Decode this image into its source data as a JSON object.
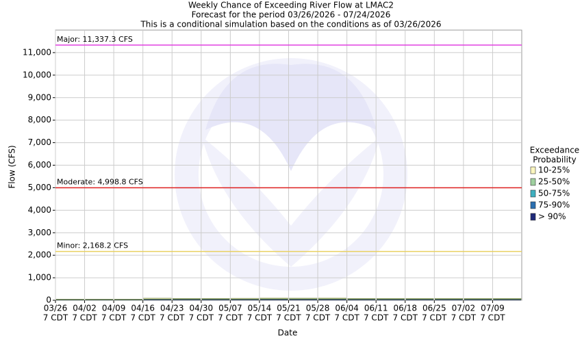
{
  "chart_data": {
    "type": "stacked-bar",
    "title": [
      "Weekly Chance of Exceeding River Flow at LMAC2",
      "Forecast for the period 03/26/2026 - 07/24/2026",
      "This is a conditional simulation based on the conditions as of 03/26/2026"
    ],
    "xlabel": "Date",
    "ylabel": "Flow (CFS)",
    "categories": [
      "03/26",
      "04/02",
      "04/09",
      "04/16",
      "04/23",
      "04/30",
      "05/07",
      "05/14",
      "05/21",
      "05/28",
      "06/04",
      "06/11",
      "06/18",
      "06/25",
      "07/02",
      "07/09"
    ],
    "category_sublabel": "7 CDT",
    "ylim": [
      0,
      12000
    ],
    "yticks": [
      0,
      {
        "value": 1000,
        "label": "1,000"
      },
      {
        "value": 2000,
        "label": "2,000"
      },
      {
        "value": 3000,
        "label": "3,000"
      },
      {
        "value": 4000,
        "label": "4,000"
      },
      {
        "value": 5000,
        "label": "5,000"
      },
      {
        "value": 6000,
        "label": "6,000"
      },
      {
        "value": 7000,
        "label": "7,000"
      },
      {
        "value": 8000,
        "label": "8,000"
      },
      {
        "value": 9000,
        "label": "9,000"
      },
      {
        "value": 10000,
        "label": "10,000"
      },
      {
        "value": 11000,
        "label": "11,000"
      }
    ],
    "grid": true,
    "legend_title": [
      "Exceedance",
      "Probability"
    ],
    "series": [
      {
        "name": "> 90%",
        "color": "#1f2a7a",
        "values": [
          30,
          30,
          30,
          40,
          40,
          40,
          40,
          45,
          45,
          45,
          40,
          40,
          40,
          40,
          40,
          40
        ]
      },
      {
        "name": "75-90%",
        "color": "#2a6fb0",
        "values": [
          5,
          5,
          5,
          8,
          8,
          8,
          8,
          8,
          8,
          8,
          8,
          8,
          8,
          8,
          8,
          8
        ]
      },
      {
        "name": "50-75%",
        "color": "#3fb0c0",
        "values": [
          5,
          5,
          5,
          8,
          8,
          8,
          8,
          8,
          8,
          8,
          8,
          8,
          8,
          8,
          8,
          8
        ]
      },
      {
        "name": "25-50%",
        "color": "#9fd09f",
        "values": [
          5,
          5,
          5,
          10,
          10,
          10,
          10,
          15,
          15,
          15,
          10,
          10,
          10,
          10,
          10,
          10
        ]
      },
      {
        "name": "10-25%",
        "color": "#fbf6bf",
        "values": [
          10,
          10,
          10,
          30,
          20,
          20,
          25,
          30,
          25,
          30,
          20,
          20,
          20,
          20,
          20,
          20
        ]
      }
    ],
    "thresholds": [
      {
        "label": "Major: 11,337.3 CFS",
        "value": 11337.3,
        "color": "#e040e0"
      },
      {
        "label": "Moderate: 4,998.8 CFS",
        "value": 4998.8,
        "color": "#e02020"
      },
      {
        "label": "Minor: 2,168.2 CFS",
        "value": 2168.2,
        "color": "#e8d060"
      }
    ]
  }
}
